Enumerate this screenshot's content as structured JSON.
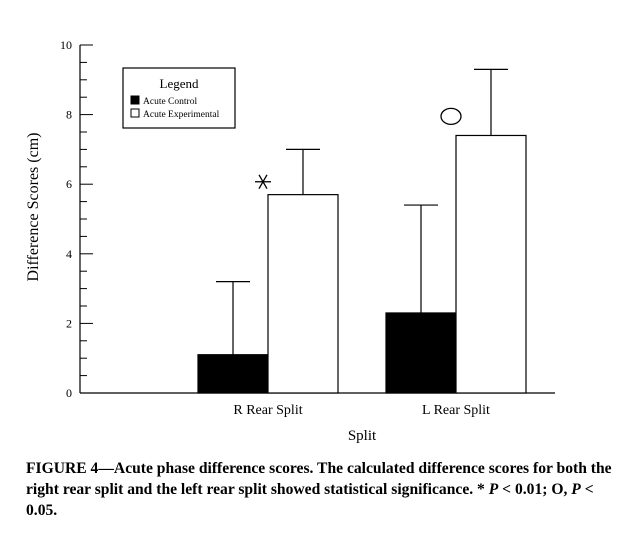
{
  "chart_data": {
    "type": "bar",
    "categories": [
      "R Rear Split",
      "L Rear Split"
    ],
    "series": [
      {
        "name": "Acute Control",
        "fill": "#000000",
        "values": [
          1.1,
          2.3
        ],
        "error_upper": [
          3.2,
          5.4
        ]
      },
      {
        "name": "Acute Experimental",
        "fill": "#ffffff",
        "values": [
          5.7,
          7.4
        ],
        "error_upper": [
          7.0,
          9.3
        ]
      }
    ],
    "annotations": [
      {
        "category": "R Rear Split",
        "series": "Acute Control",
        "symbol": "*"
      },
      {
        "category": "L Rear Split",
        "series": "Acute Control",
        "symbol": "O"
      }
    ],
    "title": "",
    "xlabel": "Split",
    "ylabel": "Difference Scores (cm)",
    "ylim": [
      0,
      10
    ],
    "yticks": [
      0,
      2,
      4,
      6,
      8,
      10
    ],
    "minor_tick_step": 0.5,
    "legend": {
      "title": "Legend",
      "position": "top-left"
    }
  },
  "caption": {
    "lead": "FIGURE 4—Acute phase difference scores. The calculated difference scores for both the right rear split and the left rear split showed statistical significance. * ",
    "p1_label": "P",
    "p1_rest": " < 0.01; O, ",
    "p2_label": "P",
    "p2_rest": " < 0.05."
  }
}
